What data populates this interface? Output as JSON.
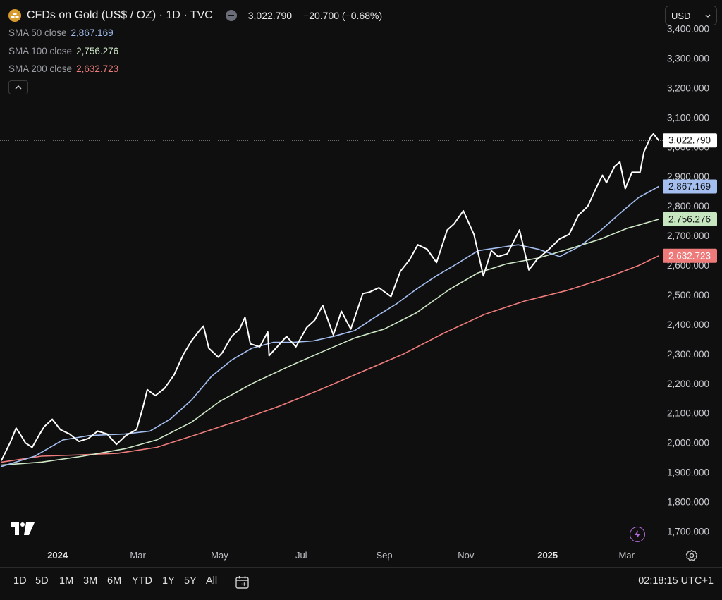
{
  "header": {
    "title": "CFDs on Gold (US$ / OZ) · 1D · TVC",
    "price": "3,022.790",
    "change": "−20.700 (−0.68%)",
    "currency": "USD"
  },
  "indicators": [
    {
      "label": "SMA 50 close",
      "value": "2,867.169",
      "color": "#a4bef0"
    },
    {
      "label": "SMA 100 close",
      "value": "2,756.276",
      "color": "#cfe8c8"
    },
    {
      "label": "SMA 200 close",
      "value": "2,632.723",
      "color": "#f07c7c"
    }
  ],
  "toolbar": {
    "ranges": [
      "1D",
      "5D",
      "1M",
      "3M",
      "6M",
      "YTD",
      "1Y",
      "5Y",
      "All"
    ],
    "clock": "02:18:15 UTC+1"
  },
  "colors": {
    "background": "#0f0f0f",
    "price_line": "#ffffff",
    "sma50": "#a4bef0",
    "sma100": "#cfe8c8",
    "sma200": "#f07c7c",
    "label_price_bg": "#ffffff",
    "label_sma50_bg": "#a4bef0",
    "label_sma100_bg": "#c6e6c0",
    "label_sma200_bg": "#ef7a7a"
  },
  "chart_data": {
    "type": "line",
    "title": "CFDs on Gold (US$ / OZ) · 1D · TVC",
    "xlabel": "",
    "ylabel": "",
    "ylim": [
      1650,
      3430
    ],
    "xlim": [
      "2023-11-19",
      "2025-03-28"
    ],
    "y_ticks": [
      1700,
      1800,
      1900,
      2000,
      2100,
      2200,
      2300,
      2400,
      2500,
      2600,
      2700,
      2800,
      2900,
      3000,
      3100,
      3200,
      3300,
      3400
    ],
    "y_tick_labels": [
      "1,700.000",
      "1,800.000",
      "1,900.000",
      "2,000.000",
      "2,100.000",
      "2,200.000",
      "2,300.000",
      "2,400.000",
      "2,500.000",
      "2,600.000",
      "2,700.000",
      "2,800.000",
      "2,900.000",
      "3,000.000",
      "3,100.000",
      "3,200.000",
      "3,300.000",
      "3,400.000"
    ],
    "x_ticks": [
      {
        "date": "2024-01-01",
        "label": "2024",
        "bold": true
      },
      {
        "date": "2024-03-01",
        "label": "Mar",
        "bold": false
      },
      {
        "date": "2024-05-01",
        "label": "May",
        "bold": false
      },
      {
        "date": "2024-07-01",
        "label": "Jul",
        "bold": false
      },
      {
        "date": "2024-09-01",
        "label": "Sep",
        "bold": false
      },
      {
        "date": "2024-11-01",
        "label": "Nov",
        "bold": false
      },
      {
        "date": "2025-01-01",
        "label": "2025",
        "bold": true
      },
      {
        "date": "2025-03-01",
        "label": "Mar",
        "bold": false
      }
    ],
    "grid": false,
    "legend": "top-left",
    "series": [
      {
        "name": "CFDs on Gold (US$ / OZ)",
        "key": "price",
        "points": [
          [
            "2023-11-20",
            1940
          ],
          [
            "2023-11-27",
            2005
          ],
          [
            "2023-12-01",
            2050
          ],
          [
            "2023-12-04",
            2030
          ],
          [
            "2023-12-08",
            2000
          ],
          [
            "2023-12-13",
            1985
          ],
          [
            "2023-12-18",
            2025
          ],
          [
            "2023-12-22",
            2055
          ],
          [
            "2023-12-28",
            2080
          ],
          [
            "2024-01-03",
            2045
          ],
          [
            "2024-01-10",
            2030
          ],
          [
            "2024-01-17",
            2005
          ],
          [
            "2024-01-24",
            2015
          ],
          [
            "2024-01-31",
            2040
          ],
          [
            "2024-02-07",
            2030
          ],
          [
            "2024-02-14",
            1995
          ],
          [
            "2024-02-21",
            2025
          ],
          [
            "2024-02-29",
            2045
          ],
          [
            "2024-03-05",
            2125
          ],
          [
            "2024-03-08",
            2180
          ],
          [
            "2024-03-14",
            2160
          ],
          [
            "2024-03-21",
            2185
          ],
          [
            "2024-03-28",
            2230
          ],
          [
            "2024-04-04",
            2300
          ],
          [
            "2024-04-10",
            2345
          ],
          [
            "2024-04-16",
            2380
          ],
          [
            "2024-04-19",
            2395
          ],
          [
            "2024-04-23",
            2320
          ],
          [
            "2024-04-30",
            2290
          ],
          [
            "2024-05-03",
            2305
          ],
          [
            "2024-05-10",
            2360
          ],
          [
            "2024-05-16",
            2385
          ],
          [
            "2024-05-20",
            2425
          ],
          [
            "2024-05-24",
            2335
          ],
          [
            "2024-05-31",
            2325
          ],
          [
            "2024-06-06",
            2375
          ],
          [
            "2024-06-07",
            2295
          ],
          [
            "2024-06-14",
            2330
          ],
          [
            "2024-06-20",
            2360
          ],
          [
            "2024-06-27",
            2325
          ],
          [
            "2024-07-05",
            2390
          ],
          [
            "2024-07-11",
            2415
          ],
          [
            "2024-07-17",
            2465
          ],
          [
            "2024-07-25",
            2365
          ],
          [
            "2024-07-31",
            2445
          ],
          [
            "2024-08-07",
            2385
          ],
          [
            "2024-08-16",
            2505
          ],
          [
            "2024-08-21",
            2510
          ],
          [
            "2024-08-28",
            2525
          ],
          [
            "2024-09-06",
            2495
          ],
          [
            "2024-09-13",
            2580
          ],
          [
            "2024-09-20",
            2620
          ],
          [
            "2024-09-26",
            2670
          ],
          [
            "2024-10-03",
            2655
          ],
          [
            "2024-10-10",
            2610
          ],
          [
            "2024-10-18",
            2720
          ],
          [
            "2024-10-23",
            2740
          ],
          [
            "2024-10-30",
            2785
          ],
          [
            "2024-11-04",
            2735
          ],
          [
            "2024-11-07",
            2705
          ],
          [
            "2024-11-14",
            2565
          ],
          [
            "2024-11-20",
            2650
          ],
          [
            "2024-11-25",
            2630
          ],
          [
            "2024-12-02",
            2640
          ],
          [
            "2024-12-11",
            2720
          ],
          [
            "2024-12-18",
            2585
          ],
          [
            "2024-12-24",
            2620
          ],
          [
            "2025-01-02",
            2655
          ],
          [
            "2025-01-10",
            2690
          ],
          [
            "2025-01-17",
            2705
          ],
          [
            "2025-01-24",
            2770
          ],
          [
            "2025-01-31",
            2800
          ],
          [
            "2025-02-06",
            2860
          ],
          [
            "2025-02-11",
            2905
          ],
          [
            "2025-02-14",
            2880
          ],
          [
            "2025-02-20",
            2935
          ],
          [
            "2025-02-24",
            2950
          ],
          [
            "2025-02-28",
            2860
          ],
          [
            "2025-03-05",
            2915
          ],
          [
            "2025-03-11",
            2915
          ],
          [
            "2025-03-14",
            2985
          ],
          [
            "2025-03-19",
            3035
          ],
          [
            "2025-03-21",
            3045
          ],
          [
            "2025-03-25",
            3022.79
          ]
        ]
      },
      {
        "name": "SMA 50 close",
        "key": "sma50",
        "points": [
          [
            "2023-11-20",
            1920
          ],
          [
            "2023-12-15",
            1955
          ],
          [
            "2024-01-05",
            2010
          ],
          [
            "2024-01-25",
            2025
          ],
          [
            "2024-02-20",
            2030
          ],
          [
            "2024-03-10",
            2040
          ],
          [
            "2024-03-25",
            2080
          ],
          [
            "2024-04-10",
            2145
          ],
          [
            "2024-04-25",
            2225
          ],
          [
            "2024-05-10",
            2280
          ],
          [
            "2024-05-25",
            2320
          ],
          [
            "2024-06-10",
            2340
          ],
          [
            "2024-06-25",
            2340
          ],
          [
            "2024-07-10",
            2345
          ],
          [
            "2024-07-25",
            2360
          ],
          [
            "2024-08-10",
            2380
          ],
          [
            "2024-08-25",
            2425
          ],
          [
            "2024-09-10",
            2470
          ],
          [
            "2024-09-25",
            2520
          ],
          [
            "2024-10-10",
            2565
          ],
          [
            "2024-10-25",
            2605
          ],
          [
            "2024-11-10",
            2650
          ],
          [
            "2024-11-25",
            2660
          ],
          [
            "2024-12-10",
            2670
          ],
          [
            "2024-12-25",
            2655
          ],
          [
            "2025-01-10",
            2630
          ],
          [
            "2025-01-25",
            2665
          ],
          [
            "2025-02-10",
            2720
          ],
          [
            "2025-02-25",
            2780
          ],
          [
            "2025-03-10",
            2830
          ],
          [
            "2025-03-25",
            2867.169
          ]
        ]
      },
      {
        "name": "SMA 100 close",
        "key": "sma100",
        "points": [
          [
            "2023-11-20",
            1925
          ],
          [
            "2023-12-20",
            1935
          ],
          [
            "2024-01-20",
            1955
          ],
          [
            "2024-02-20",
            1980
          ],
          [
            "2024-03-15",
            2010
          ],
          [
            "2024-04-10",
            2070
          ],
          [
            "2024-05-01",
            2140
          ],
          [
            "2024-05-25",
            2200
          ],
          [
            "2024-06-20",
            2255
          ],
          [
            "2024-07-15",
            2305
          ],
          [
            "2024-08-10",
            2355
          ],
          [
            "2024-09-01",
            2385
          ],
          [
            "2024-09-25",
            2440
          ],
          [
            "2024-10-20",
            2520
          ],
          [
            "2024-11-10",
            2575
          ],
          [
            "2024-12-01",
            2605
          ],
          [
            "2024-12-25",
            2625
          ],
          [
            "2025-01-20",
            2660
          ],
          [
            "2025-02-10",
            2690
          ],
          [
            "2025-03-01",
            2725
          ],
          [
            "2025-03-25",
            2756.276
          ]
        ]
      },
      {
        "name": "SMA 200 close",
        "key": "sma200",
        "points": [
          [
            "2023-11-20",
            1935
          ],
          [
            "2023-12-20",
            1955
          ],
          [
            "2024-01-20",
            1960
          ],
          [
            "2024-02-15",
            1965
          ],
          [
            "2024-03-15",
            1985
          ],
          [
            "2024-04-15",
            2030
          ],
          [
            "2024-05-15",
            2075
          ],
          [
            "2024-06-15",
            2125
          ],
          [
            "2024-07-15",
            2180
          ],
          [
            "2024-08-15",
            2240
          ],
          [
            "2024-09-15",
            2300
          ],
          [
            "2024-10-15",
            2370
          ],
          [
            "2024-11-15",
            2435
          ],
          [
            "2024-12-15",
            2480
          ],
          [
            "2025-01-15",
            2515
          ],
          [
            "2025-02-15",
            2560
          ],
          [
            "2025-03-10",
            2600
          ],
          [
            "2025-03-25",
            2632.723
          ]
        ]
      }
    ],
    "last_value_labels": [
      {
        "series": "price",
        "value": 3022.79,
        "text": "3,022.790"
      },
      {
        "series": "sma50",
        "value": 2867.169,
        "text": "2,867.169"
      },
      {
        "series": "sma100",
        "value": 2756.276,
        "text": "2,756.276"
      },
      {
        "series": "sma200",
        "value": 2632.723,
        "text": "2,632.723"
      }
    ]
  }
}
